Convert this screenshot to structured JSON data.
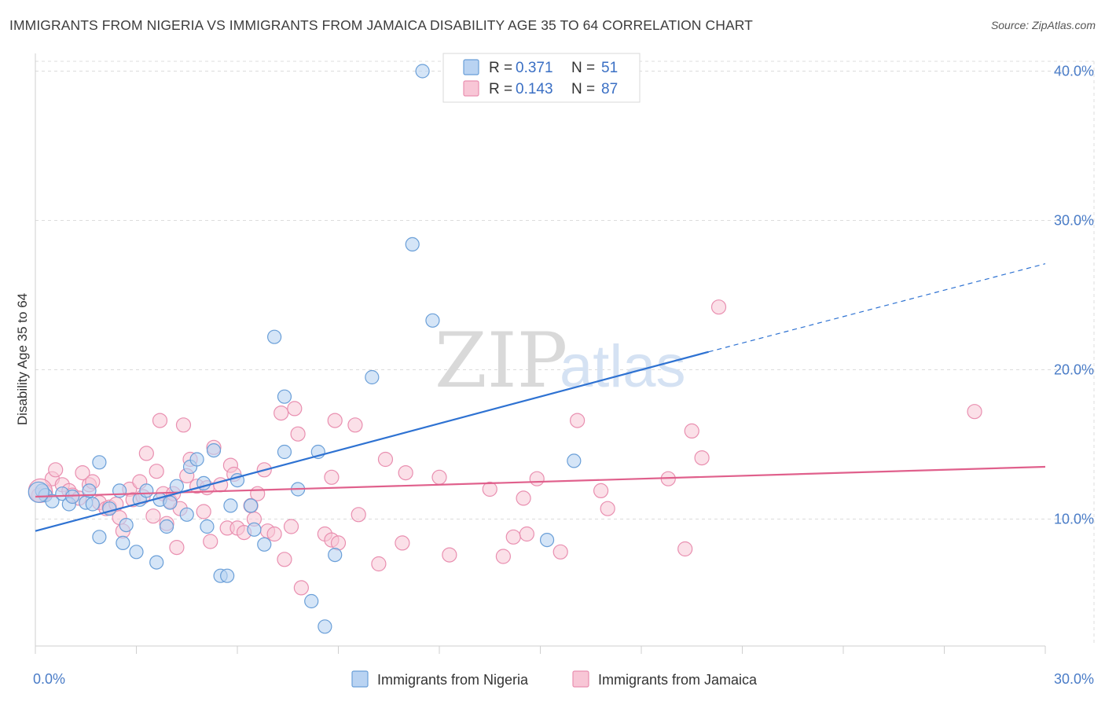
{
  "title": "IMMIGRANTS FROM NIGERIA VS IMMIGRANTS FROM JAMAICA DISABILITY AGE 35 TO 64 CORRELATION CHART",
  "source": "Source: ZipAtlas.com",
  "watermark": {
    "part1": "ZIP",
    "part2": "atlas"
  },
  "legend": {
    "r_label": "R =",
    "n_label": "N =",
    "items": [
      {
        "r": "0.371",
        "n": "51"
      },
      {
        "r": "0.143",
        "n": "87"
      }
    ]
  },
  "bottom_legend": [
    "Immigrants from Nigeria",
    "Immigrants from Jamaica"
  ],
  "colors": {
    "nigeria_fill": "#b9d3f2",
    "nigeria_stroke": "#6a9fd8",
    "nigeria_line": "#2e72d2",
    "jamaica_fill": "#f8c6d6",
    "jamaica_stroke": "#e98fb0",
    "jamaica_line": "#e0608c",
    "tick_text": "#4a7cc7"
  },
  "chart_data": {
    "type": "scatter",
    "title": "IMMIGRANTS FROM NIGERIA VS IMMIGRANTS FROM JAMAICA DISABILITY AGE 35 TO 64 CORRELATION CHART",
    "xlabel": "",
    "ylabel": "Disability Age 35 to 64",
    "xlim": [
      0,
      30
    ],
    "ylim": [
      1.5,
      41.5
    ],
    "x_tick_labels": [
      "0.0%",
      "30.0%"
    ],
    "y_ticks": [
      10,
      20,
      30,
      40
    ],
    "y_tick_labels": [
      "10.0%",
      "20.0%",
      "30.0%",
      "40.0%"
    ],
    "grid": true,
    "legend_position": "top-center",
    "series": [
      {
        "name": "Immigrants from Nigeria",
        "r": 0.371,
        "n": 51,
        "trend": {
          "x_start": 0,
          "y_start": 9.2,
          "x_solid_end": 20.0,
          "y_solid_end": 21.2,
          "x_dash_end": 30,
          "y_dash_end": 27.1
        },
        "points": [
          [
            0.2,
            11.9
          ],
          [
            0.3,
            11.6
          ],
          [
            0.5,
            11.2
          ],
          [
            0.8,
            11.7
          ],
          [
            1.0,
            11.0
          ],
          [
            1.1,
            11.5
          ],
          [
            1.5,
            11.1
          ],
          [
            1.6,
            11.9
          ],
          [
            1.7,
            11.0
          ],
          [
            1.9,
            13.8
          ],
          [
            1.9,
            8.8
          ],
          [
            2.2,
            10.7
          ],
          [
            2.5,
            11.9
          ],
          [
            2.6,
            8.4
          ],
          [
            2.7,
            9.6
          ],
          [
            3.0,
            7.8
          ],
          [
            3.1,
            11.3
          ],
          [
            3.3,
            11.9
          ],
          [
            3.6,
            7.1
          ],
          [
            3.7,
            11.3
          ],
          [
            3.9,
            9.5
          ],
          [
            4.0,
            11.1
          ],
          [
            4.2,
            12.2
          ],
          [
            4.5,
            10.3
          ],
          [
            4.6,
            13.5
          ],
          [
            4.8,
            14.0
          ],
          [
            5.0,
            12.4
          ],
          [
            5.1,
            9.5
          ],
          [
            5.3,
            14.6
          ],
          [
            5.5,
            6.2
          ],
          [
            5.7,
            6.2
          ],
          [
            5.8,
            10.9
          ],
          [
            6.0,
            12.6
          ],
          [
            6.4,
            10.9
          ],
          [
            6.5,
            9.3
          ],
          [
            6.8,
            8.3
          ],
          [
            7.1,
            22.2
          ],
          [
            7.4,
            14.5
          ],
          [
            7.4,
            18.2
          ],
          [
            7.8,
            12.0
          ],
          [
            8.2,
            4.5
          ],
          [
            8.4,
            14.5
          ],
          [
            8.6,
            2.8
          ],
          [
            8.9,
            7.6
          ],
          [
            10.0,
            19.5
          ],
          [
            11.2,
            28.4
          ],
          [
            11.5,
            40.0
          ],
          [
            11.8,
            23.3
          ],
          [
            15.2,
            8.6
          ],
          [
            16.0,
            13.9
          ],
          [
            0.1,
            11.8
          ]
        ]
      },
      {
        "name": "Immigrants from Jamaica",
        "r": 0.143,
        "n": 87,
        "trend": {
          "x_start": 0,
          "y_start": 11.5,
          "x_end": 30,
          "y_end": 13.5
        },
        "points": [
          [
            0.1,
            11.6
          ],
          [
            0.3,
            11.8
          ],
          [
            0.5,
            12.7
          ],
          [
            0.6,
            13.3
          ],
          [
            0.8,
            12.3
          ],
          [
            1.0,
            11.9
          ],
          [
            1.1,
            11.6
          ],
          [
            1.3,
            11.4
          ],
          [
            1.4,
            13.1
          ],
          [
            1.6,
            12.3
          ],
          [
            1.7,
            12.5
          ],
          [
            1.9,
            11.1
          ],
          [
            2.1,
            10.7
          ],
          [
            2.2,
            10.8
          ],
          [
            2.4,
            11.0
          ],
          [
            2.5,
            10.1
          ],
          [
            2.6,
            9.2
          ],
          [
            2.8,
            12.0
          ],
          [
            2.9,
            11.3
          ],
          [
            3.1,
            12.5
          ],
          [
            3.2,
            11.5
          ],
          [
            3.3,
            14.4
          ],
          [
            3.5,
            10.2
          ],
          [
            3.6,
            13.2
          ],
          [
            3.7,
            16.6
          ],
          [
            3.8,
            11.7
          ],
          [
            3.9,
            9.7
          ],
          [
            4.0,
            11.2
          ],
          [
            4.1,
            11.7
          ],
          [
            4.2,
            8.1
          ],
          [
            4.3,
            10.7
          ],
          [
            4.4,
            16.3
          ],
          [
            4.5,
            12.9
          ],
          [
            4.6,
            14.0
          ],
          [
            4.8,
            12.2
          ],
          [
            5.0,
            10.5
          ],
          [
            5.1,
            12.1
          ],
          [
            5.2,
            8.5
          ],
          [
            5.3,
            14.8
          ],
          [
            5.5,
            12.3
          ],
          [
            5.7,
            9.4
          ],
          [
            5.8,
            13.6
          ],
          [
            5.9,
            13.0
          ],
          [
            6.0,
            9.4
          ],
          [
            6.2,
            9.1
          ],
          [
            6.4,
            10.9
          ],
          [
            6.5,
            10.0
          ],
          [
            6.6,
            11.7
          ],
          [
            6.8,
            13.3
          ],
          [
            6.9,
            9.2
          ],
          [
            7.1,
            9.0
          ],
          [
            7.3,
            17.1
          ],
          [
            7.4,
            7.3
          ],
          [
            7.6,
            9.5
          ],
          [
            7.7,
            17.4
          ],
          [
            7.8,
            15.7
          ],
          [
            7.9,
            5.4
          ],
          [
            8.6,
            9.0
          ],
          [
            8.8,
            12.8
          ],
          [
            8.8,
            8.6
          ],
          [
            8.9,
            16.6
          ],
          [
            9.0,
            8.4
          ],
          [
            9.5,
            16.3
          ],
          [
            9.6,
            10.3
          ],
          [
            10.2,
            7.0
          ],
          [
            10.4,
            14.0
          ],
          [
            10.9,
            8.4
          ],
          [
            11.0,
            13.1
          ],
          [
            12.0,
            12.8
          ],
          [
            12.3,
            7.6
          ],
          [
            13.5,
            12.0
          ],
          [
            13.9,
            7.5
          ],
          [
            14.2,
            8.8
          ],
          [
            14.5,
            11.4
          ],
          [
            14.6,
            9.0
          ],
          [
            14.9,
            12.7
          ],
          [
            15.6,
            7.8
          ],
          [
            16.1,
            16.6
          ],
          [
            16.8,
            11.9
          ],
          [
            17.0,
            10.7
          ],
          [
            18.8,
            12.7
          ],
          [
            19.3,
            8.0
          ],
          [
            19.5,
            15.9
          ],
          [
            19.8,
            14.1
          ],
          [
            20.3,
            24.2
          ],
          [
            27.9,
            17.2
          ],
          [
            0.15,
            11.9
          ]
        ]
      }
    ]
  }
}
